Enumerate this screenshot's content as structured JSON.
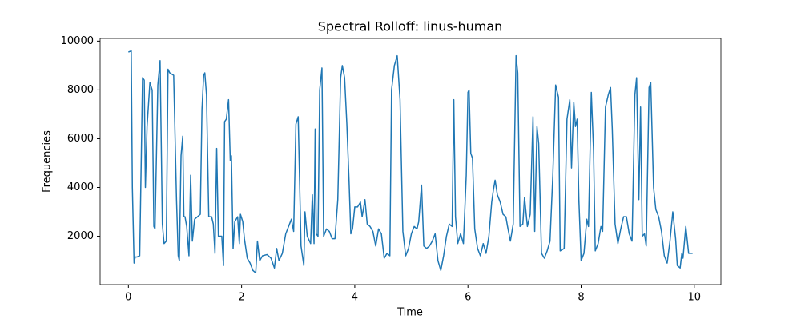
{
  "chart_data": {
    "type": "line",
    "title": "Spectral Rolloff: linus-human",
    "x_label": "Time",
    "y_label": "Frequencies",
    "xlim": [
      -0.5,
      10.47
    ],
    "ylim": [
      20,
      10110
    ],
    "xticks": [
      0,
      2,
      4,
      6,
      8,
      10
    ],
    "yticks": [
      2000,
      4000,
      6000,
      8000,
      10000
    ],
    "grid": false,
    "series": [
      {
        "name": "linus-human",
        "color": "#1f77b4",
        "x": [
          0.0,
          0.05,
          0.07,
          0.1,
          0.12,
          0.15,
          0.2,
          0.25,
          0.28,
          0.3,
          0.33,
          0.38,
          0.42,
          0.45,
          0.47,
          0.52,
          0.56,
          0.6,
          0.63,
          0.67,
          0.7,
          0.73,
          0.8,
          0.85,
          0.88,
          0.9,
          0.93,
          0.96,
          0.98,
          1.0,
          1.03,
          1.07,
          1.1,
          1.13,
          1.17,
          1.22,
          1.27,
          1.3,
          1.33,
          1.35,
          1.38,
          1.42,
          1.47,
          1.5,
          1.53,
          1.56,
          1.59,
          1.62,
          1.65,
          1.68,
          1.7,
          1.73,
          1.77,
          1.8,
          1.82,
          1.85,
          1.88,
          1.93,
          1.96,
          1.98,
          2.02,
          2.05,
          2.1,
          2.15,
          2.2,
          2.25,
          2.28,
          2.32,
          2.37,
          2.45,
          2.52,
          2.58,
          2.62,
          2.66,
          2.72,
          2.78,
          2.83,
          2.88,
          2.92,
          2.96,
          3.0,
          3.05,
          3.1,
          3.12,
          3.16,
          3.22,
          3.25,
          3.28,
          3.3,
          3.32,
          3.35,
          3.38,
          3.42,
          3.45,
          3.5,
          3.55,
          3.6,
          3.65,
          3.7,
          3.75,
          3.78,
          3.82,
          3.86,
          3.9,
          3.93,
          3.96,
          4.0,
          4.05,
          4.1,
          4.13,
          4.18,
          4.22,
          4.27,
          4.32,
          4.37,
          4.42,
          4.47,
          4.52,
          4.57,
          4.62,
          4.65,
          4.7,
          4.75,
          4.8,
          4.85,
          4.9,
          4.95,
          5.0,
          5.05,
          5.1,
          5.13,
          5.18,
          5.22,
          5.27,
          5.32,
          5.37,
          5.42,
          5.47,
          5.52,
          5.57,
          5.62,
          5.67,
          5.72,
          5.75,
          5.78,
          5.82,
          5.87,
          5.92,
          5.97,
          6.0,
          6.02,
          6.05,
          6.08,
          6.12,
          6.17,
          6.22,
          6.27,
          6.32,
          6.37,
          6.42,
          6.45,
          6.48,
          6.52,
          6.57,
          6.62,
          6.67,
          6.7,
          6.75,
          6.8,
          6.85,
          6.88,
          6.92,
          6.97,
          7.0,
          7.05,
          7.1,
          7.15,
          7.18,
          7.22,
          7.25,
          7.3,
          7.35,
          7.4,
          7.45,
          7.5,
          7.55,
          7.6,
          7.63,
          7.7,
          7.75,
          7.8,
          7.83,
          7.87,
          7.9,
          7.93,
          7.96,
          8.0,
          8.05,
          8.1,
          8.13,
          8.18,
          8.22,
          8.25,
          8.3,
          8.35,
          8.38,
          8.43,
          8.48,
          8.52,
          8.55,
          8.6,
          8.65,
          8.7,
          8.75,
          8.8,
          8.85,
          8.9,
          8.95,
          8.98,
          9.02,
          9.05,
          9.08,
          9.12,
          9.15,
          9.2,
          9.23,
          9.28,
          9.32,
          9.37,
          9.42,
          9.47,
          9.52,
          9.57,
          9.62,
          9.67,
          9.7,
          9.75,
          9.78,
          9.8,
          9.85,
          9.9,
          9.97
        ],
        "values": [
          9550,
          9600,
          4000,
          900,
          1150,
          1150,
          1200,
          8500,
          8400,
          4000,
          6500,
          8300,
          8000,
          2400,
          2300,
          8200,
          9200,
          2500,
          1700,
          1800,
          8850,
          8700,
          8600,
          3500,
          1200,
          1000,
          5300,
          6100,
          2800,
          2800,
          2400,
          1200,
          4500,
          1800,
          2700,
          2800,
          2900,
          7200,
          8600,
          8700,
          7800,
          2800,
          2800,
          2500,
          1300,
          5600,
          2000,
          2000,
          2000,
          800,
          6700,
          6800,
          7600,
          5100,
          5300,
          1500,
          2600,
          2800,
          1700,
          2900,
          2600,
          1900,
          1100,
          900,
          600,
          500,
          1800,
          1000,
          1200,
          1250,
          1100,
          700,
          1500,
          1000,
          1300,
          2100,
          2400,
          2700,
          2200,
          6600,
          6900,
          1600,
          800,
          3000,
          2000,
          1700,
          3700,
          1700,
          6400,
          2100,
          2000,
          8000,
          8900,
          2000,
          2300,
          2200,
          1900,
          1900,
          3500,
          8500,
          9000,
          8500,
          6600,
          4200,
          2100,
          2300,
          3200,
          3200,
          3400,
          2800,
          3500,
          2500,
          2400,
          2200,
          1600,
          2300,
          2100,
          1100,
          1300,
          1200,
          8000,
          9000,
          9400,
          7600,
          2200,
          1200,
          1500,
          2100,
          2400,
          2300,
          2600,
          4100,
          1600,
          1500,
          1600,
          1800,
          2100,
          1000,
          600,
          1200,
          2000,
          2500,
          2400,
          7600,
          2800,
          1700,
          2100,
          1700,
          4500,
          7900,
          8000,
          5400,
          5200,
          2300,
          1500,
          1200,
          1700,
          1300,
          2000,
          3400,
          3900,
          4300,
          3700,
          3400,
          2900,
          2800,
          2400,
          1800,
          2500,
          9400,
          8700,
          2400,
          2500,
          3600,
          2400,
          2900,
          6900,
          2200,
          6500,
          5800,
          1300,
          1100,
          1400,
          1800,
          4500,
          8200,
          7700,
          1400,
          1500,
          6800,
          7600,
          4800,
          7500,
          6500,
          6800,
          3500,
          1000,
          1300,
          2700,
          2400,
          7900,
          5500,
          1400,
          1700,
          2400,
          2200,
          7300,
          7800,
          8100,
          6400,
          2500,
          1700,
          2300,
          2800,
          2800,
          2100,
          1800,
          7800,
          8500,
          3500,
          7300,
          2000,
          2100,
          1600,
          8100,
          8300,
          4000,
          3100,
          2800,
          2200,
          1200,
          900,
          1800,
          3000,
          1900,
          800,
          700,
          1300,
          1100,
          2400,
          1300,
          1300
        ]
      }
    ]
  }
}
